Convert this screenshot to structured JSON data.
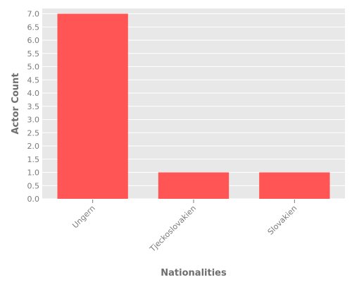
{
  "chart_data": {
    "type": "bar",
    "title": "",
    "xlabel": "Nationalities",
    "ylabel": "Actor Count",
    "categories": [
      "Ungern",
      "Tjeckoslovakien",
      "Slovakien"
    ],
    "values": [
      7,
      1,
      1
    ],
    "ylim": [
      0,
      7.2
    ],
    "yticks": [
      "0.0",
      "0.5",
      "1.0",
      "1.5",
      "2.0",
      "2.5",
      "3.0",
      "3.5",
      "4.0",
      "4.5",
      "5.0",
      "5.5",
      "6.0",
      "6.5",
      "7.0"
    ],
    "grid": true,
    "legend": "none",
    "colors": {
      "bar": "#ff5555",
      "panel": "#e8e8e8",
      "grid": "#ffffff",
      "text": "#7a7a7a"
    }
  }
}
